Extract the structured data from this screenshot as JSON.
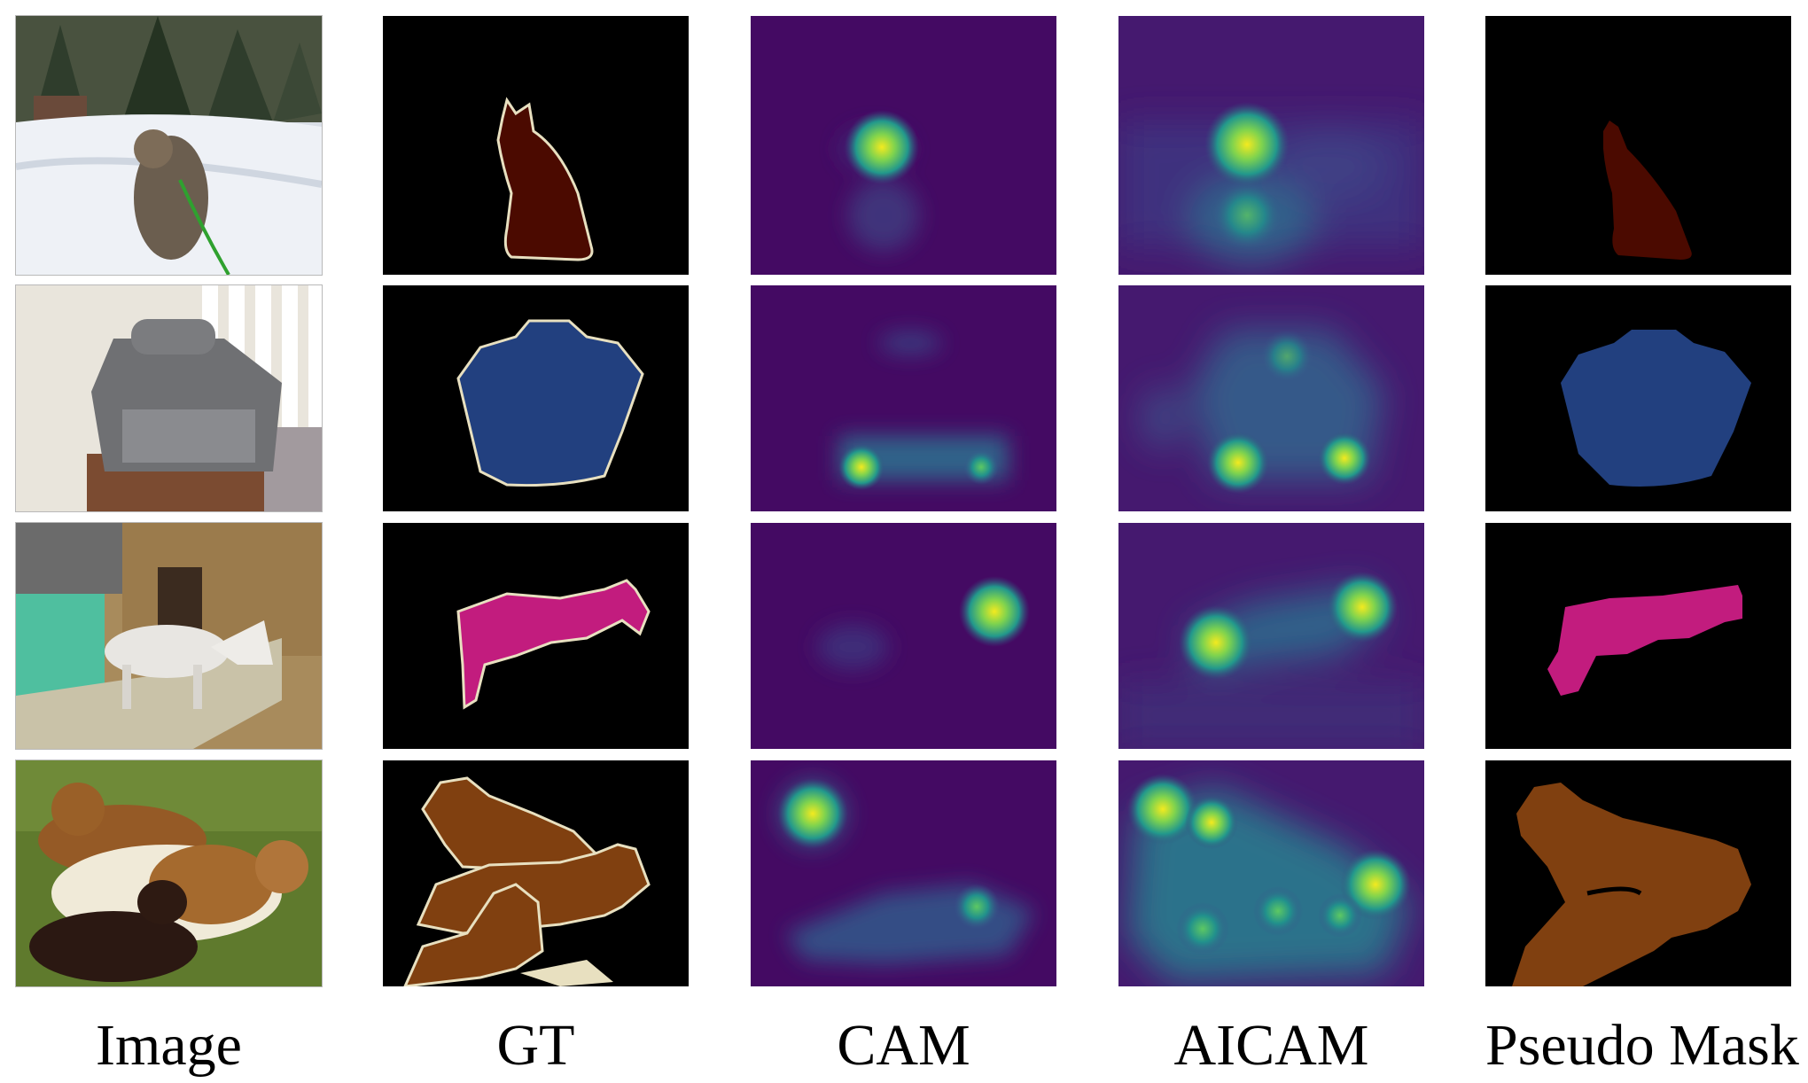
{
  "figure": {
    "columns": [
      "Image",
      "GT",
      "CAM",
      "AICAM",
      "Pseudo Mask"
    ],
    "rows": [
      {
        "object": "cat",
        "scene": "snow",
        "mask_color": "#4b0a00",
        "gt_outline": "#e8e0c0"
      },
      {
        "object": "tv",
        "scene": "room",
        "mask_color": "#22407f",
        "gt_outline": "#e8e0c0"
      },
      {
        "object": "horse",
        "scene": "yard",
        "mask_color": "#c21c7e",
        "gt_outline": "#e8e0c0"
      },
      {
        "object": "sheep",
        "scene": "grass",
        "mask_color": "#804010",
        "gt_outline": "#e8e0c0"
      }
    ],
    "colors": {
      "heatmap_background": "#440a63",
      "heatmap_peak": "#f0f020",
      "mask_background": "#000000"
    }
  }
}
